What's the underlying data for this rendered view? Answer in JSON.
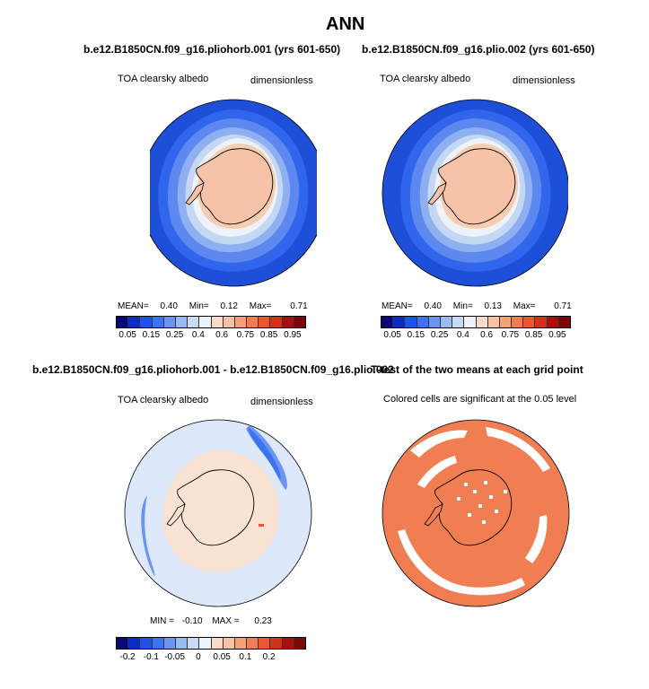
{
  "figure": {
    "title": "ANN",
    "left_panel_title": "b.e12.B1850CN.f09_g16.pliohorb.001 (yrs 601-650)",
    "right_panel_title": "b.e12.B1850CN.f09_g16.plio.002 (yrs 601-650)",
    "diff_title": "b.e12.B1850CN.f09_g16.pliohorb.001 - b.e12.B1850CN.f09_g16.plio.002",
    "ttest_title": "T-test of the two means at each grid point"
  },
  "panel1": {
    "variable": "TOA clearsky albedo",
    "units": "dimensionless",
    "mean_label": "MEAN=",
    "mean": "0.40",
    "min_label": "Min=",
    "min": "0.12",
    "max_label": "Max=",
    "max": "0.71"
  },
  "panel2": {
    "variable": "TOA clearsky albedo",
    "units": "dimensionless",
    "mean_label": "MEAN=",
    "mean": "0.40",
    "min_label": "Min=",
    "min": "0.13",
    "max_label": "Max=",
    "max": "0.71"
  },
  "panel3": {
    "variable": "TOA clearsky albedo",
    "units": "dimensionless",
    "min_label": "MIN =",
    "min": "-0.10",
    "max_label": "MAX =",
    "max": "0.23"
  },
  "panel4": {
    "caption": "Colored cells are significant at the 0.05 level"
  },
  "colorbar_main": {
    "colors": [
      "#08087a",
      "#0c2cc4",
      "#1f52e6",
      "#3d72f0",
      "#6b95f2",
      "#9cbaf2",
      "#c8dbf5",
      "#eef2fa",
      "#f8dcc8",
      "#f6c1a4",
      "#f4a079",
      "#f07e52",
      "#e8592e",
      "#d1321a",
      "#a81010",
      "#7a0808"
    ],
    "labels": [
      "0.05",
      "0.15",
      "0.25",
      "0.4",
      "0.6",
      "0.75",
      "0.85",
      "0.95"
    ]
  },
  "colorbar_diff": {
    "colors": [
      "#08087a",
      "#0c2cc4",
      "#1f52e6",
      "#3d72f0",
      "#6b95f2",
      "#9cbaf2",
      "#c8dbf5",
      "#eef2fa",
      "#f8dcc8",
      "#f6c1a4",
      "#f4a079",
      "#f07e52",
      "#e8592e",
      "#d1321a",
      "#a81010",
      "#7a0808"
    ],
    "labels": [
      "-0.2",
      "-0.1",
      "-0.05",
      "0",
      "0.05",
      "0.1",
      "0.2"
    ]
  }
}
